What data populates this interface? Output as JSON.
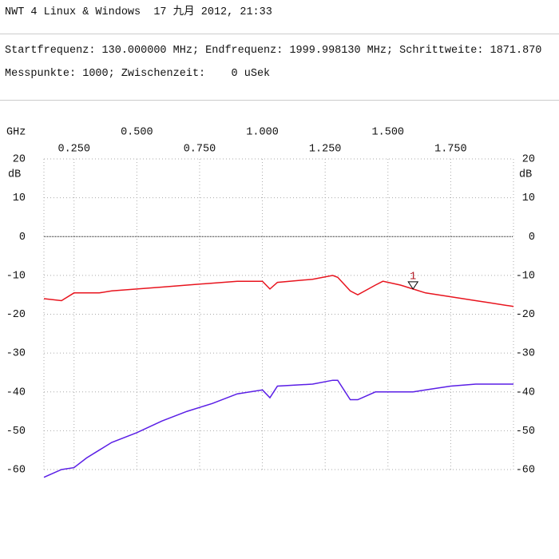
{
  "header": {
    "title": "NWT 4 Linux & Windows  17 九月 2012, 21:33",
    "line1": "Startfrequenz: 130.000000 MHz; Endfrequenz: 1999.998130 MHz; Schrittweite: 1871.870",
    "line2": "Messpunkte: 1000; Zwischenzeit:    0 uSek"
  },
  "chart_data": {
    "type": "line",
    "x_label": "GHz",
    "y_label": "dB",
    "x": [
      0.13,
      0.2,
      0.25,
      0.3,
      0.35,
      0.4,
      0.5,
      0.6,
      0.7,
      0.8,
      0.9,
      1.0,
      1.03,
      1.06,
      1.2,
      1.28,
      1.3,
      1.35,
      1.38,
      1.45,
      1.48,
      1.55,
      1.6,
      1.65,
      1.75,
      1.85,
      1.9,
      2.0
    ],
    "series": [
      {
        "color": "#e8141e",
        "values": [
          -16,
          -16.5,
          -14.5,
          -14.5,
          -14.5,
          -14,
          -13.5,
          -13,
          -12.5,
          -12,
          -11.5,
          -11.5,
          -13.5,
          -11.8,
          -11,
          -10,
          -10.5,
          -14,
          -15,
          -12.5,
          -11.5,
          -12.5,
          -13.5,
          -14.5,
          -15.5,
          -16.5,
          -17,
          -18
        ]
      },
      {
        "color": "#5a1ee6",
        "values": [
          -62,
          -60,
          -59.5,
          -57,
          -55,
          -53,
          -50.5,
          -47.5,
          -45,
          -43,
          -40.5,
          -39.5,
          -41.5,
          -38.5,
          -38,
          -37,
          -37,
          -42,
          -42,
          -40,
          -40,
          -40,
          -40,
          -39.5,
          -38.5,
          -38,
          -38,
          -38
        ]
      }
    ],
    "xlim": [
      0.13,
      2.0
    ],
    "xticks": [
      {
        "value": 0.25,
        "label": "0.250"
      },
      {
        "value": 0.5,
        "label": "0.500"
      },
      {
        "value": 0.75,
        "label": "0.750"
      },
      {
        "value": 1.0,
        "label": "1.000"
      },
      {
        "value": 1.25,
        "label": "1.250"
      },
      {
        "value": 1.5,
        "label": "1.500"
      },
      {
        "value": 1.75,
        "label": "1.750"
      }
    ],
    "ylim": [
      -60,
      20
    ],
    "yticks": [
      20,
      10,
      0,
      -10,
      -20,
      -30,
      -40,
      -50,
      -60
    ],
    "grid": true,
    "marker": {
      "label": "1",
      "x": 1.6,
      "y": -13.5,
      "color": "#b0141e"
    }
  }
}
